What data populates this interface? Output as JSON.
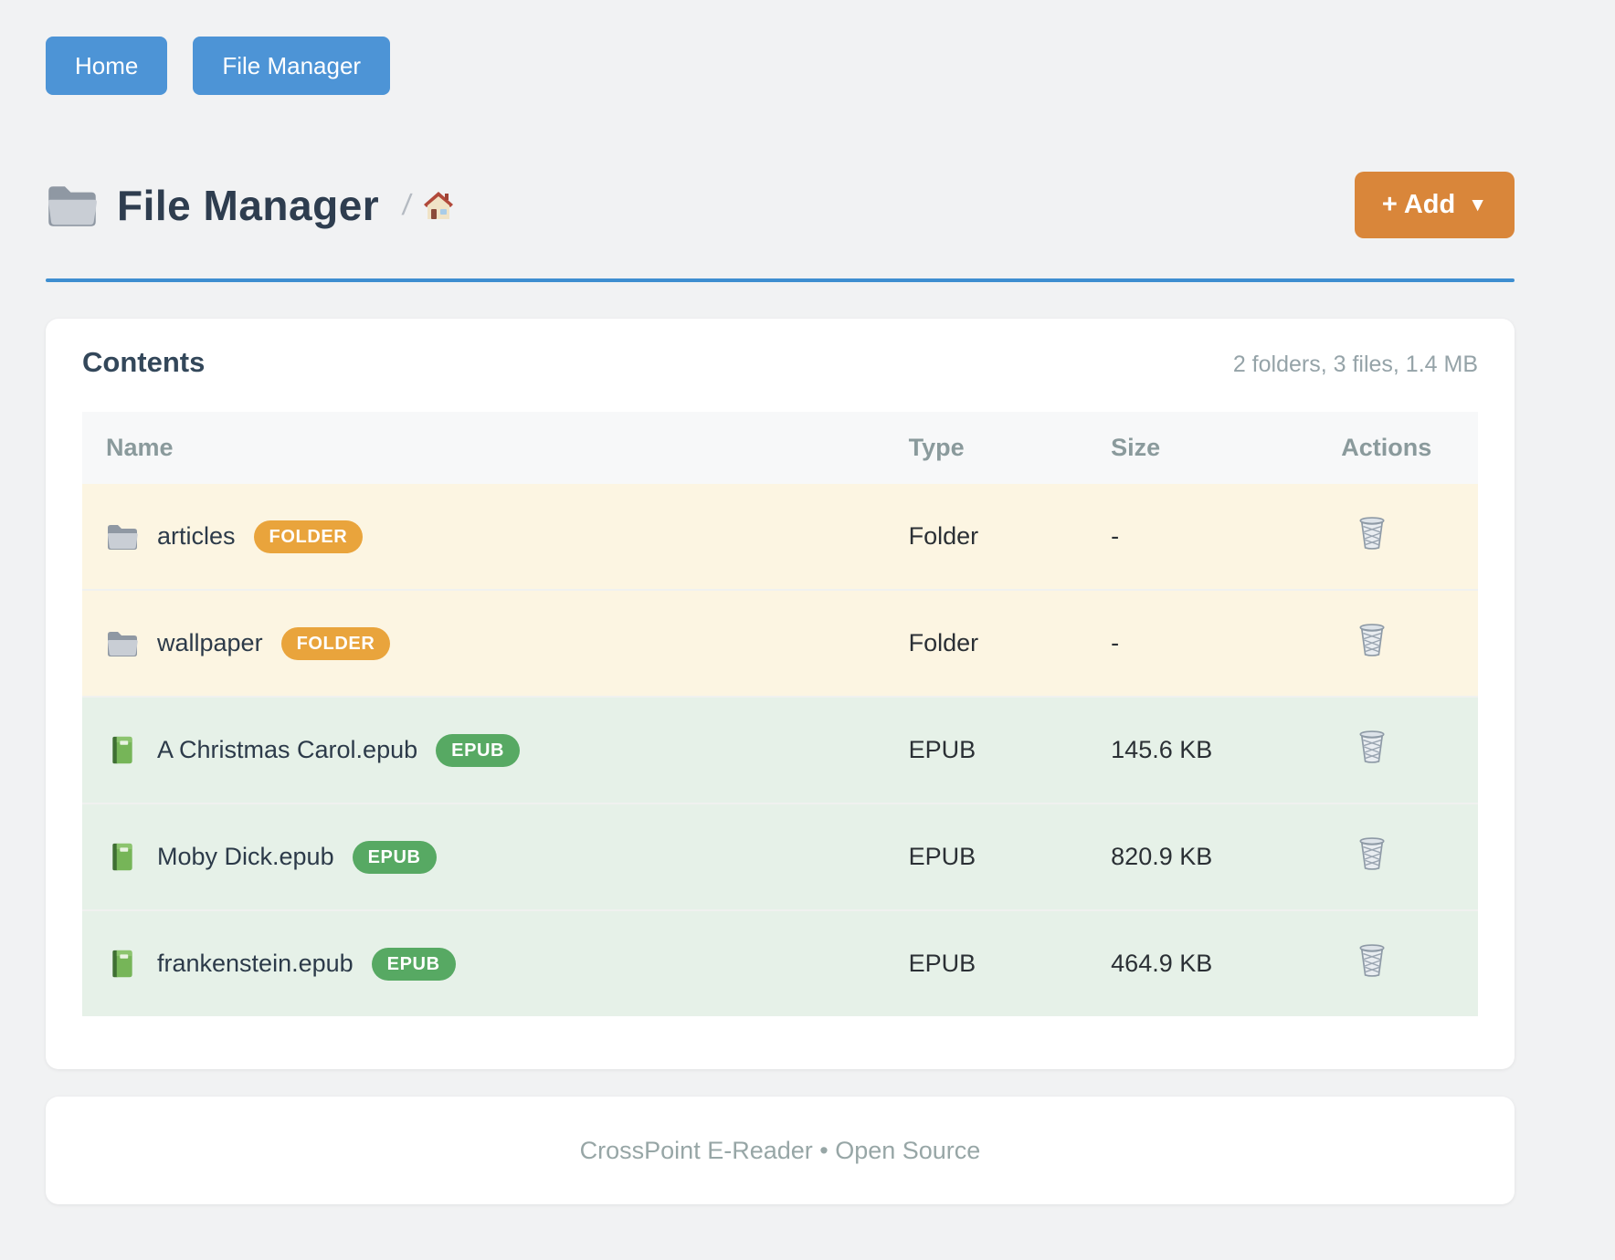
{
  "nav": {
    "home_label": "Home",
    "file_manager_label": "File Manager"
  },
  "header": {
    "title": "File Manager",
    "title_icon": "folder-icon",
    "breadcrumb_separator": "/",
    "breadcrumb_home_icon": "house-icon",
    "add_button_label": "+ Add",
    "add_button_caret": "▼"
  },
  "colors": {
    "accent_blue": "#4d94d6",
    "rule_blue": "#3e8ed0",
    "accent_orange": "#d9863a",
    "folder_badge": "#e9a43c",
    "epub_badge": "#57a963",
    "folder_row_bg": "#fcf5e2",
    "epub_row_bg": "#e6f1e8"
  },
  "contents": {
    "heading": "Contents",
    "summary": "2 folders, 3 files, 1.4 MB",
    "columns": [
      "Name",
      "Type",
      "Size",
      "Actions"
    ],
    "rows": [
      {
        "icon": "folder-icon",
        "name": "articles",
        "badge": "FOLDER",
        "kind": "folder",
        "type": "Folder",
        "size": "-",
        "action_icon": "trash-icon"
      },
      {
        "icon": "folder-icon",
        "name": "wallpaper",
        "badge": "FOLDER",
        "kind": "folder",
        "type": "Folder",
        "size": "-",
        "action_icon": "trash-icon"
      },
      {
        "icon": "book-icon",
        "name": "A Christmas Carol.epub",
        "badge": "EPUB",
        "kind": "epub",
        "type": "EPUB",
        "size": "145.6 KB",
        "action_icon": "trash-icon"
      },
      {
        "icon": "book-icon",
        "name": "Moby Dick.epub",
        "badge": "EPUB",
        "kind": "epub",
        "type": "EPUB",
        "size": "820.9 KB",
        "action_icon": "trash-icon"
      },
      {
        "icon": "book-icon",
        "name": "frankenstein.epub",
        "badge": "EPUB",
        "kind": "epub",
        "type": "EPUB",
        "size": "464.9 KB",
        "action_icon": "trash-icon"
      }
    ]
  },
  "footer": {
    "text": "CrossPoint E-Reader • Open Source"
  }
}
